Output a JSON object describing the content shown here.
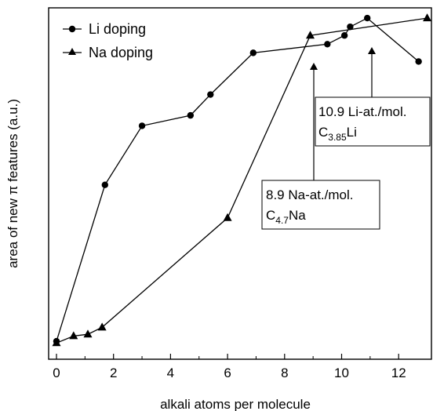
{
  "chart_data": {
    "type": "line",
    "xlabel": "alkali atoms per molecule",
    "ylabel": "area of new π features (a.u.)",
    "xlim": [
      -0.3,
      13.0
    ],
    "ylim": [
      0,
      100
    ],
    "xticks": [
      "0",
      "2",
      "4",
      "6",
      "8",
      "10",
      "12"
    ],
    "xtick_values": [
      0,
      2,
      4,
      6,
      8,
      10,
      12
    ],
    "yticks_shown": false,
    "grid": false,
    "legend_position": "top-left",
    "series": [
      {
        "name": "Li doping",
        "marker": "circle",
        "x": [
          0,
          1.7,
          3.0,
          4.7,
          5.4,
          6.9,
          9.5,
          10.1,
          10.3,
          10.9,
          12.7
        ],
        "y": [
          4.5,
          49.5,
          66.5,
          69.5,
          75.5,
          87.5,
          90.0,
          92.5,
          95.0,
          97.5,
          85.0
        ]
      },
      {
        "name": "Na doping",
        "marker": "triangle",
        "x": [
          0,
          0.6,
          1.1,
          1.6,
          6.0,
          8.9,
          13.0
        ],
        "y": [
          4.0,
          6.0,
          6.5,
          8.5,
          40.0,
          92.5,
          97.5
        ]
      }
    ],
    "annotations": [
      {
        "line1": "10.9 Li-at./mol.",
        "line2_base": "C",
        "line2_sub": "3.85",
        "line2_tail": "Li",
        "points_to_x": 10.9
      },
      {
        "line1": "8.9 Na-at./mol.",
        "line2_base": "C",
        "line2_sub": "4.7",
        "line2_tail": "Na",
        "points_to_x": 8.9
      }
    ]
  }
}
